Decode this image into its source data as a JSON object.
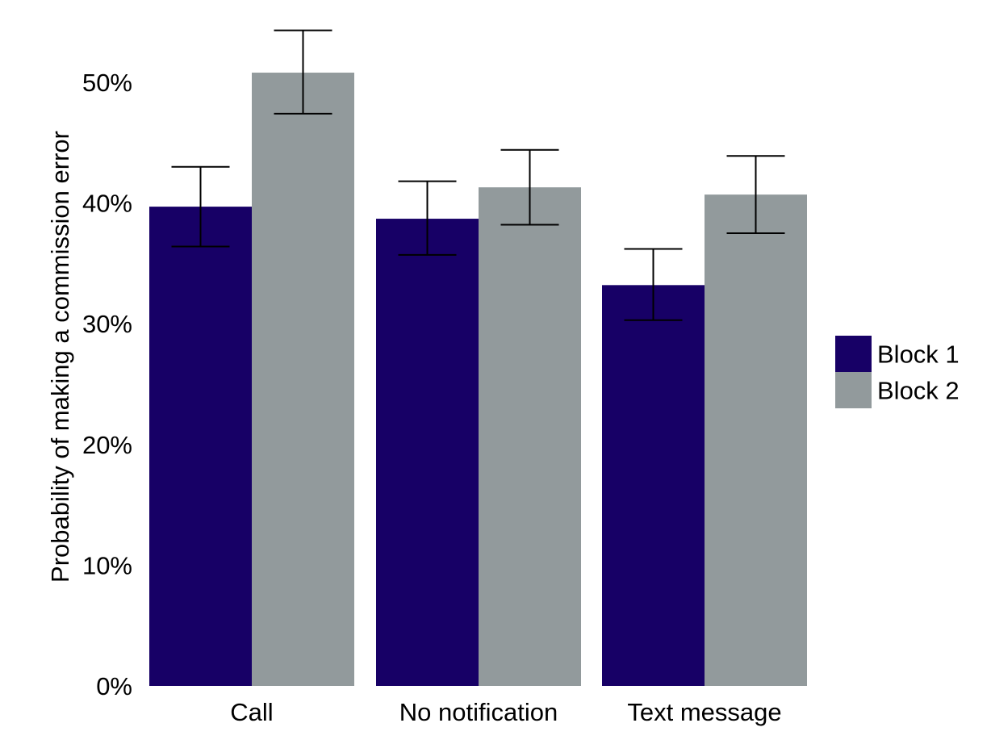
{
  "chart_data": {
    "type": "bar",
    "title": "",
    "xlabel": "",
    "ylabel": "Probability of making a commission error",
    "categories": [
      "Call",
      "No notification",
      "Text message"
    ],
    "series": [
      {
        "name": "Block 1",
        "color": "#170066",
        "values": [
          39.7,
          38.7,
          33.2
        ],
        "error_low": [
          36.4,
          35.7,
          30.3
        ],
        "error_high": [
          43.0,
          41.8,
          36.2
        ]
      },
      {
        "name": "Block 2",
        "color": "#929a9c",
        "values": [
          50.8,
          41.3,
          40.7
        ],
        "error_low": [
          47.4,
          38.2,
          37.5
        ],
        "error_high": [
          54.3,
          44.4,
          43.9
        ]
      }
    ],
    "ylim": [
      0,
      55
    ],
    "yticks": [
      0,
      10,
      20,
      30,
      40,
      50
    ],
    "ytick_labels": [
      "0%",
      "10%",
      "20%",
      "30%",
      "40%",
      "50%"
    ],
    "grid": false,
    "legend_position": "right"
  }
}
